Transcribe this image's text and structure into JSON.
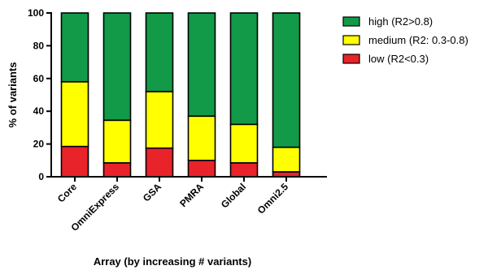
{
  "chart_data": {
    "type": "bar",
    "stacked": true,
    "title": "",
    "xlabel": "Array (by increasing # variants)",
    "ylabel": "% of variants",
    "ylim": [
      0,
      100
    ],
    "yticks": [
      "0",
      "20",
      "40",
      "60",
      "80",
      "100"
    ],
    "categories": [
      "Core",
      "OmniExpress",
      "GSA",
      "PMRA",
      "Global",
      "Omni2.5"
    ],
    "series": [
      {
        "name": "low (R2<0.3)",
        "color": "#e8232a",
        "values": [
          18.5,
          8.5,
          17.5,
          10,
          8.5,
          3
        ]
      },
      {
        "name": "medium (R2: 0.3-0.8)",
        "color": "#ffff00",
        "values": [
          39.5,
          26,
          34.5,
          27,
          23.5,
          15
        ]
      },
      {
        "name": "high (R2>0.8)",
        "color": "#129a48",
        "values": [
          42,
          65.5,
          48,
          63,
          68,
          82
        ]
      }
    ],
    "legend": {
      "position": "right",
      "order": [
        "high (R2>0.8)",
        "medium (R2: 0.3-0.8)",
        "low (R2<0.3)"
      ]
    },
    "grid": false
  }
}
